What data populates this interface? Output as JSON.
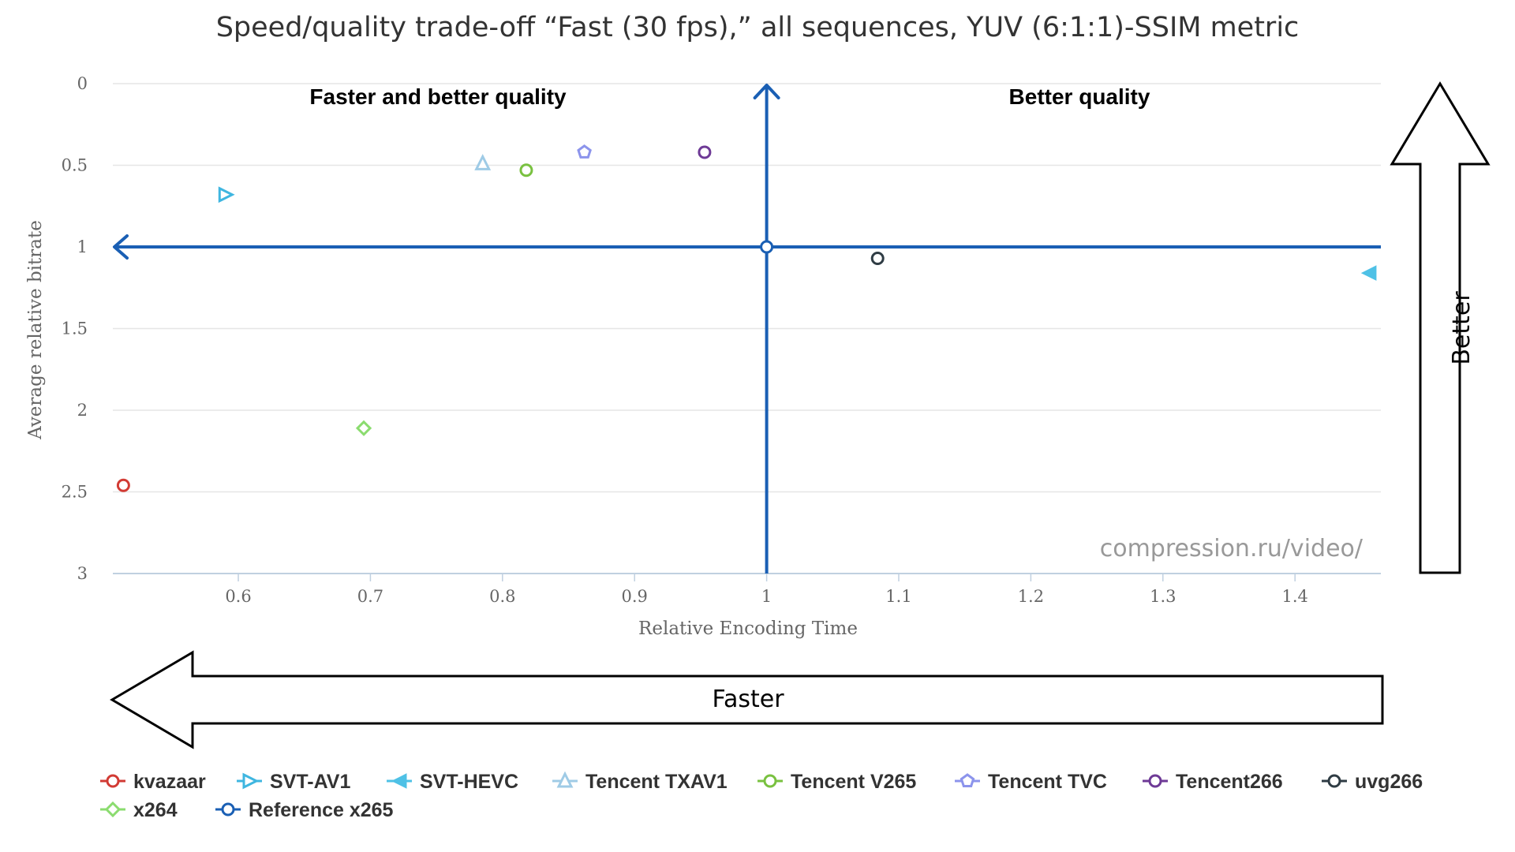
{
  "chart_data": {
    "type": "scatter",
    "title": "Speed/quality trade-off “Fast (30 fps),” all sequences, YUV (6:1:1)-SSIM metric",
    "xlabel": "Relative Encoding Time",
    "ylabel": "Average relative bitrate",
    "xlim": [
      0.505,
      1.465
    ],
    "ylim": [
      0,
      3
    ],
    "y_reversed": true,
    "x_ticks": [
      "0.6",
      "0.7",
      "0.8",
      "0.9",
      "1",
      "1.1",
      "1.2",
      "1.3",
      "1.4"
    ],
    "y_ticks": [
      "0",
      "0.5",
      "1",
      "1.5",
      "2",
      "2.5",
      "3"
    ],
    "grid": "horizontal",
    "legend_position": "bottom",
    "series": [
      {
        "name": "kvazaar",
        "symbol": "circle",
        "color": "#d23b34",
        "x": 0.513,
        "y": 2.46
      },
      {
        "name": "SVT-AV1",
        "symbol": "triangle-right",
        "color": "#3fb6e0",
        "x": 0.59,
        "y": 0.68
      },
      {
        "name": "SVT-HEVC",
        "symbol": "triangle-left-filled",
        "color": "#4ec1e6",
        "x": 1.456,
        "y": 1.16
      },
      {
        "name": "Tencent TXAV1",
        "symbol": "triangle-up",
        "color": "#9fcbe6",
        "x": 0.785,
        "y": 0.49
      },
      {
        "name": "Tencent V265",
        "symbol": "circle",
        "color": "#79c140",
        "x": 0.818,
        "y": 0.53
      },
      {
        "name": "Tencent TVC",
        "symbol": "pentagon",
        "color": "#8c94ec",
        "x": 0.862,
        "y": 0.42
      },
      {
        "name": "Tencent266",
        "symbol": "circle",
        "color": "#6e3a96",
        "x": 0.953,
        "y": 0.42
      },
      {
        "name": "uvg266",
        "symbol": "circle",
        "color": "#2f3c44",
        "x": 1.084,
        "y": 1.07
      },
      {
        "name": "x264",
        "symbol": "diamond",
        "color": "#8bdc6f",
        "x": 0.695,
        "y": 2.11
      },
      {
        "name": "Reference x265",
        "symbol": "circle",
        "color": "#1a5fb4",
        "x": 1.0,
        "y": 1.0
      }
    ],
    "annotations": {
      "top_left": "Faster and better quality",
      "top_right": "Better quality",
      "watermark": "compression.ru/video/",
      "right_arrow": "Better",
      "bottom_arrow": "Faster"
    },
    "reference_cross_color": "#1a5fb4"
  }
}
